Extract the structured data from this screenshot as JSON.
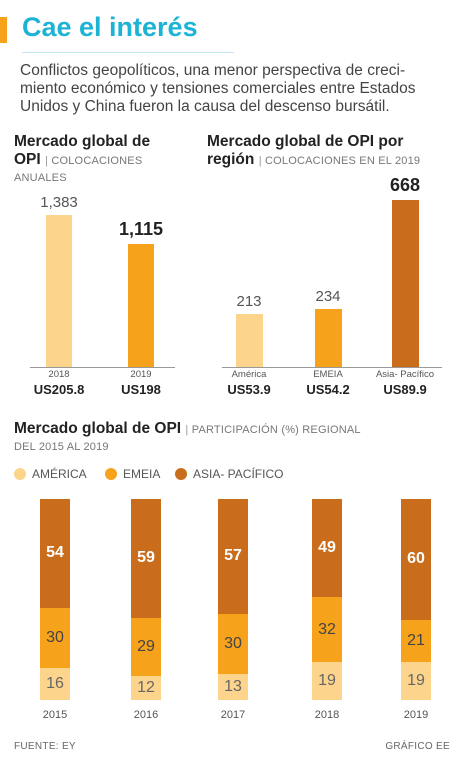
{
  "header": {
    "title": "Cae el interés",
    "intro_lines": [
      "Conflictos geopolíticos, una menor perspectiva de creci-",
      "miento económico y tensiones comerciales entre Estados",
      "Unidos y China fueron la causa del descenso bursátil."
    ]
  },
  "colors": {
    "accent": "#f7a21b",
    "title": "#1db3d4",
    "america": "#fdd48c",
    "emeia": "#f7a21b",
    "asia_pacifico": "#c96d1c"
  },
  "chart_data": [
    {
      "type": "bar",
      "title_line1": "Mercado global de",
      "title_line2": "OPI",
      "subtitle": "COLOCACIONES",
      "subtitle_line2": "ANUALES",
      "categories": [
        "2018",
        "2019"
      ],
      "values": [
        1383,
        1115
      ],
      "value_labels": [
        "1,383",
        "1,115"
      ],
      "amounts": [
        "US205.8",
        "US198"
      ],
      "highlight_index": 1
    },
    {
      "type": "bar",
      "title_line1": "Mercado global de OPI por",
      "title_line2": "región",
      "subtitle": "COLOCACIONES EN EL 2019",
      "categories": [
        "América",
        "EMEIA",
        "Asia- Pacífico"
      ],
      "values": [
        213,
        234,
        668
      ],
      "value_labels": [
        "213",
        "234",
        "668"
      ],
      "amounts": [
        "US53.9",
        "US54.2",
        "US89.9"
      ],
      "highlight_index": 2
    },
    {
      "type": "bar",
      "stacked": true,
      "title": "Mercado global de OPI",
      "subtitle": "PARTICIPACIÓN (%) REGIONAL",
      "subtitle_line2": "DEL 2015 AL 2019",
      "categories": [
        "2015",
        "2016",
        "2017",
        "2018",
        "2019"
      ],
      "legend_position": "top-left",
      "series": [
        {
          "name": "AMÉRICA",
          "values": [
            16,
            12,
            13,
            19,
            19
          ]
        },
        {
          "name": "EMEIA",
          "values": [
            30,
            29,
            30,
            32,
            21
          ]
        },
        {
          "name": "ASIA- PACÍFICO",
          "values": [
            54,
            59,
            57,
            49,
            60
          ]
        }
      ]
    }
  ],
  "footer": {
    "source": "FUENTE: EY",
    "credit": "GRÁFICO EE"
  }
}
